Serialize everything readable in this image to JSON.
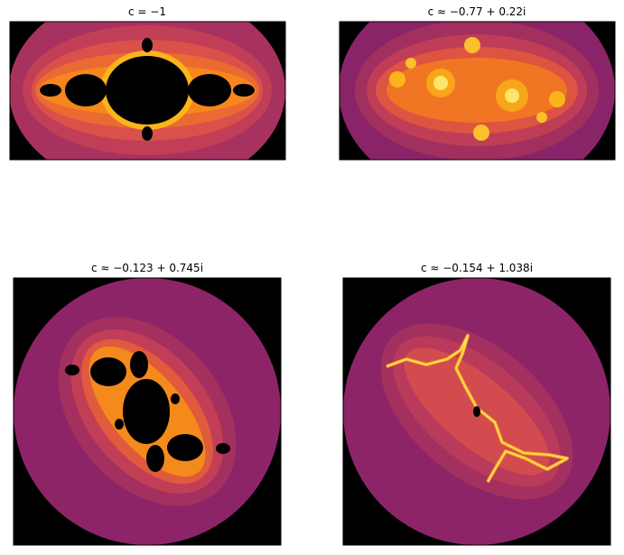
{
  "panels": [
    {
      "title": "c = −1"
    },
    {
      "title": "c ≈ −0.77 + 0.22i"
    },
    {
      "title": "c ≈ −0.123 + 0.745i"
    },
    {
      "title": "c ≈ −0.154 + 1.038i"
    }
  ]
}
